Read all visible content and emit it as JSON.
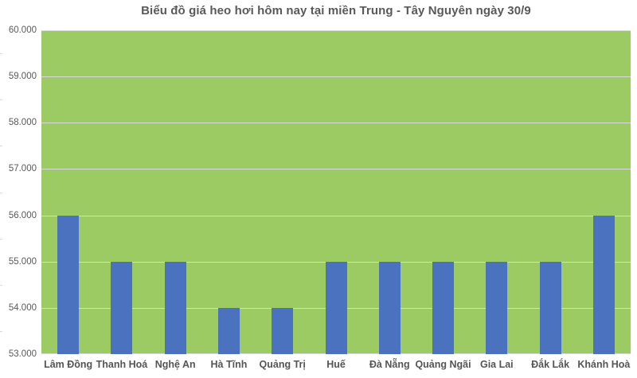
{
  "chart_data": {
    "type": "bar",
    "title": "Biểu đồ giá heo hơi hôm nay tại miền Trung - Tây Nguyên ngày 30/9",
    "categories": [
      "Lâm Đồng",
      "Thanh Hoá",
      "Nghệ An",
      "Hà Tĩnh",
      "Quảng Trị",
      "Huế",
      "Đà Nẵng",
      "Quảng Ngãi",
      "Gia Lai",
      "Đắk Lắk",
      "Khánh Hoà"
    ],
    "values": [
      56000,
      55000,
      55000,
      54000,
      54000,
      55000,
      55000,
      55000,
      55000,
      55000,
      56000
    ],
    "xlabel": "",
    "ylabel": "",
    "ylim": [
      53000,
      60000
    ],
    "ytick_values": [
      60000,
      59000,
      58000,
      57000,
      56000,
      55000,
      54000,
      53000
    ],
    "ytick_labels": [
      "60.000",
      "59.000",
      "58.000",
      "57.000",
      "56.000",
      "55.000",
      "54.000",
      "53.000"
    ],
    "grid": "horizontal gridlines on",
    "legend": "none",
    "colors": {
      "bar_fill": "#4A72BE",
      "plot_background": "#9BCB62",
      "gridline": "#D9D9D9",
      "title_text": "#595959",
      "y_axis_text": "#595959",
      "x_axis_text": "#555555"
    }
  }
}
